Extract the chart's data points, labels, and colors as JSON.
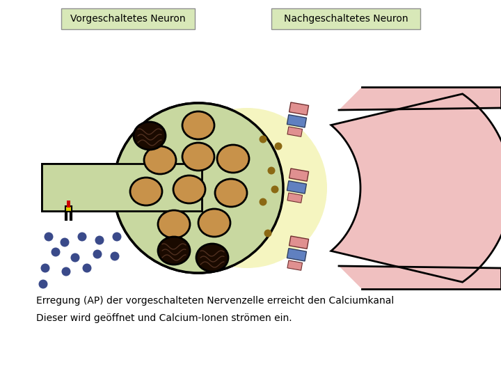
{
  "title_left": "Vorgeschaltetes Neuron",
  "title_right": "Nachgeschaltetes Neuron",
  "text_line1": "Erregung (AP) der vorgeschalteten Nervenzelle erreicht den Calciumkanal",
  "text_line2": "Dieser wird geöffnet und Calcium-Ionen strömen ein.",
  "bg_color": "#ffffff",
  "axon_color": "#c8d8a0",
  "axon_border": "#000000",
  "dendrite_color": "#f0c0c0",
  "dendrite_border": "#000000",
  "terminal_color": "#c8d8a0",
  "terminal_border": "#000000",
  "synaptic_cleft_color": "#f5f5c0",
  "vesicle_fill": "#c8924a",
  "vesicle_border": "#000000",
  "vesicle_dark_fill": "#1a0a00",
  "ca_dot_color": "#8b6914",
  "ca_ion_color": "#3a4a8a",
  "receptor_pink": "#e09090",
  "receptor_blue": "#6080c0",
  "channel_red": "#cc0000",
  "channel_yellow": "#e0d000",
  "label_bg": "#d8e8b8",
  "label_border": "#909090"
}
